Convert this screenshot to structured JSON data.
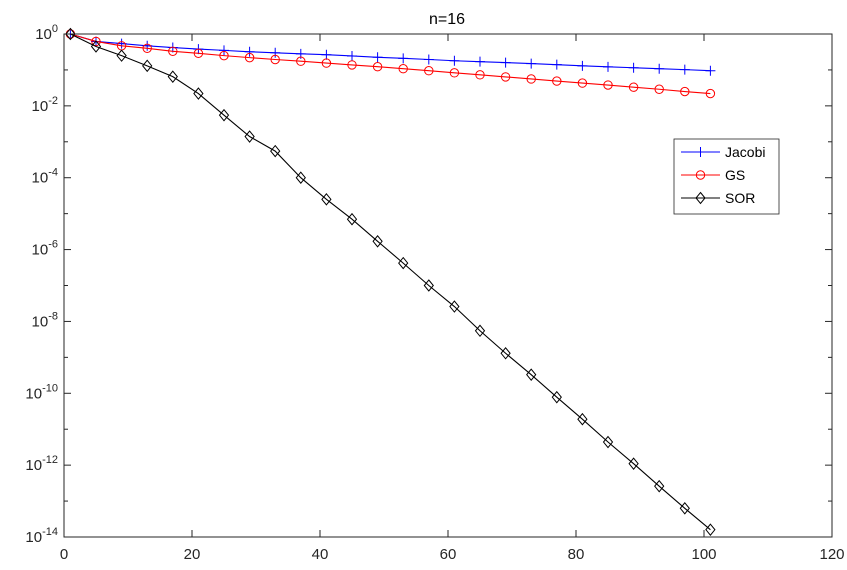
{
  "chart_data": {
    "type": "line",
    "title": "n=16",
    "xlabel": "",
    "ylabel": "",
    "x_scale": "linear",
    "y_scale": "log",
    "xlim": [
      0,
      120
    ],
    "ylim": [
      1e-14,
      1
    ],
    "x_ticks": [
      0,
      20,
      40,
      60,
      80,
      100,
      120
    ],
    "x_tick_labels": [
      "0",
      "20",
      "40",
      "60",
      "80",
      "100",
      "120"
    ],
    "y_ticks": [
      {
        "value": 1,
        "base": "10",
        "exp": "0"
      },
      {
        "value": 0.01,
        "base": "10",
        "exp": "-2"
      },
      {
        "value": 0.0001,
        "base": "10",
        "exp": "-4"
      },
      {
        "value": 1e-06,
        "base": "10",
        "exp": "-6"
      },
      {
        "value": 1e-08,
        "base": "10",
        "exp": "-8"
      },
      {
        "value": 1e-10,
        "base": "10",
        "exp": "-10"
      },
      {
        "value": 1e-12,
        "base": "10",
        "exp": "-12"
      },
      {
        "value": 1e-14,
        "base": "10",
        "exp": "-14"
      }
    ],
    "grid": false,
    "legend_position": "right",
    "x": [
      1,
      5,
      9,
      13,
      17,
      21,
      25,
      29,
      33,
      37,
      41,
      45,
      49,
      53,
      57,
      61,
      65,
      69,
      73,
      77,
      81,
      85,
      89,
      93,
      97,
      101
    ],
    "series": [
      {
        "name": "Jacobi",
        "color": "#0000ff",
        "marker": "plus",
        "values": [
          1,
          0.62,
          0.54,
          0.47,
          0.42,
          0.38,
          0.35,
          0.32,
          0.3,
          0.28,
          0.265,
          0.245,
          0.225,
          0.21,
          0.195,
          0.18,
          0.17,
          0.16,
          0.15,
          0.14,
          0.13,
          0.122,
          0.115,
          0.108,
          0.102,
          0.095
        ]
      },
      {
        "name": "GS",
        "color": "#ff0000",
        "marker": "circle",
        "values": [
          1,
          0.62,
          0.47,
          0.4,
          0.33,
          0.29,
          0.25,
          0.22,
          0.195,
          0.175,
          0.155,
          0.138,
          0.123,
          0.108,
          0.095,
          0.083,
          0.073,
          0.064,
          0.056,
          0.049,
          0.043,
          0.038,
          0.033,
          0.029,
          0.025,
          0.022
        ]
      },
      {
        "name": "SOR",
        "color": "#000000",
        "marker": "diamond",
        "values": [
          1,
          0.45,
          0.25,
          0.13,
          0.065,
          0.022,
          0.0055,
          0.0014,
          0.00055,
          0.0001,
          2.5e-05,
          7e-06,
          1.7e-06,
          4.2e-07,
          1e-07,
          2.6e-08,
          5.5e-09,
          1.3e-09,
          3.3e-10,
          7.8e-11,
          1.9e-11,
          4.4e-12,
          1.1e-12,
          2.6e-13,
          6.3e-14,
          1.6e-14
        ]
      }
    ]
  }
}
